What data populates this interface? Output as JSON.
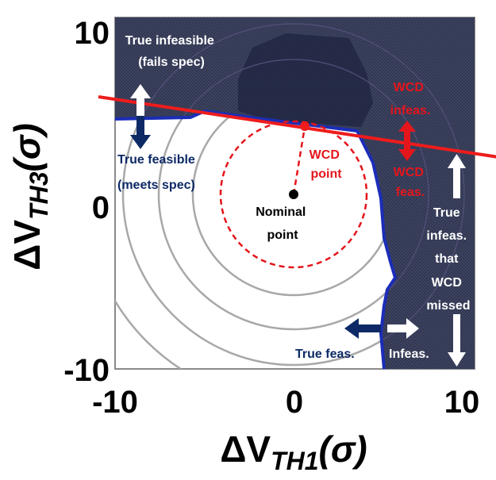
{
  "axes": {
    "x_label_main": "ΔV",
    "x_label_sub": "TH1",
    "x_label_paren": "(σ)",
    "y_label_main": "ΔV",
    "y_label_sub": "TH3",
    "y_label_paren": "(σ)",
    "x_ticks": [
      "-10",
      "0",
      "10"
    ],
    "y_ticks": [
      "10",
      "0",
      "-10"
    ]
  },
  "labels": {
    "true_infeasible_line1": "True infeasible",
    "true_infeasible_line2": "(fails spec)",
    "true_feasible_line1": "True feasible",
    "true_feasible_line2": "(meets spec)",
    "wcd_point_line1": "WCD",
    "wcd_point_line2": "point",
    "nominal_line1": "Nominal",
    "nominal_line2": "point",
    "wcd_infeas_line1": "WCD",
    "wcd_infeas_line2": "infeas.",
    "wcd_feas_line1": "WCD",
    "wcd_feas_line2": "feas.",
    "missed_line1": "True",
    "missed_line2": "infeas.",
    "missed_line3": "that",
    "missed_line4": "WCD",
    "missed_line5": "missed",
    "true_feas_short": "True feas.",
    "infeas_short": "Infeas."
  },
  "colors": {
    "infeasible_fill": "#2f3550",
    "feasible_boundary": "#1b2db8",
    "wcd_line": "#ee1c1c",
    "contour": "#a8a8a8",
    "navy_arrow": "#0d2a66"
  }
}
